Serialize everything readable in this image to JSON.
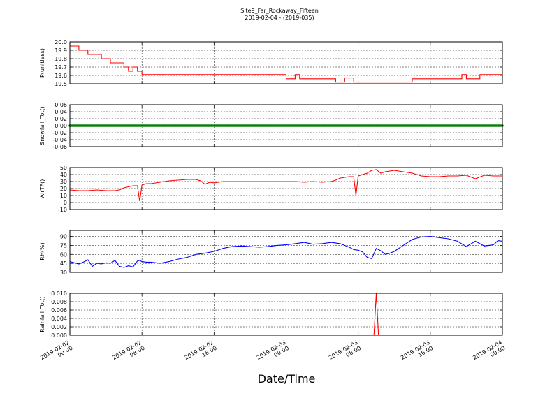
{
  "figure": {
    "title": "Site9_Far_Rockaway_Fifteen",
    "subtitle": "2019-02-04 - (2019-035)",
    "xlabel": "Date/Time"
  },
  "chart_data": [
    {
      "type": "line",
      "ylabel": "P(unitless)",
      "color": "#ff0000",
      "ylim": [
        19.5,
        20.0
      ],
      "yticks": [
        "20.0",
        "19.9",
        "19.8",
        "19.7",
        "19.6",
        "19.5"
      ],
      "grid": true,
      "x_hours": [
        0,
        2,
        2,
        4,
        4,
        7,
        7,
        9,
        9,
        12,
        12,
        13,
        13,
        14,
        14,
        15,
        15,
        16,
        16,
        48,
        48,
        50,
        50,
        51,
        51,
        59,
        59,
        61,
        61,
        63,
        63,
        76,
        76,
        87,
        87,
        88,
        88,
        88.5,
        88.5,
        91,
        91,
        96
      ],
      "values": [
        19.95,
        19.95,
        19.9,
        19.9,
        19.85,
        19.85,
        19.8,
        19.8,
        19.75,
        19.75,
        19.7,
        19.7,
        19.65,
        19.65,
        19.7,
        19.7,
        19.65,
        19.65,
        19.61,
        19.61,
        19.56,
        19.56,
        19.61,
        19.61,
        19.56,
        19.56,
        19.52,
        19.52,
        19.57,
        19.57,
        19.52,
        19.52,
        19.56,
        19.56,
        19.61,
        19.61,
        19.56,
        19.56,
        19.56,
        19.56,
        19.61,
        19.61
      ]
    },
    {
      "type": "scatter",
      "ylabel": "Snowfall_Tot()",
      "color": "#008000",
      "ylim": [
        -0.06,
        0.06
      ],
      "yticks": [
        "0.06",
        "0.04",
        "0.02",
        "0.00",
        "-0.02",
        "-0.04",
        "-0.06"
      ],
      "grid": true,
      "x_range_hours": [
        0,
        96
      ],
      "constant_value": 0.0
    },
    {
      "type": "line",
      "ylabel": "AirTF()",
      "color": "#ff0000",
      "ylim": [
        -10,
        50
      ],
      "yticks": [
        "50",
        "40",
        "30",
        "20",
        "10",
        "0",
        "-10"
      ],
      "grid": true,
      "x_hours": [
        0,
        2,
        4,
        6,
        8,
        10,
        11,
        12,
        14,
        15,
        15.5,
        16,
        17,
        18,
        20,
        22,
        24,
        26,
        28,
        29,
        30,
        31,
        32,
        34,
        36,
        38,
        40,
        42,
        44,
        46,
        48,
        50,
        52,
        54,
        56,
        58,
        59,
        60,
        62,
        63,
        63.5,
        64,
        66,
        67,
        68,
        69,
        70,
        72,
        74,
        76,
        78,
        80,
        82,
        84,
        86,
        88,
        90,
        92,
        94,
        96
      ],
      "values": [
        18,
        17,
        17,
        18,
        17,
        17,
        18,
        21,
        24,
        24,
        2,
        25,
        27,
        27,
        29,
        31,
        32,
        33,
        33,
        31,
        26,
        29,
        28,
        30,
        30,
        30,
        30,
        30,
        30,
        30,
        30,
        30,
        29,
        30,
        29,
        30,
        32,
        35,
        37,
        37,
        10,
        38,
        42,
        46,
        47,
        42,
        44,
        46,
        44,
        42,
        38,
        37,
        37,
        38,
        38,
        39,
        34,
        39,
        38,
        38
      ]
    },
    {
      "type": "line",
      "ylabel": "RH(%)",
      "color": "#0000ff",
      "ylim": [
        30,
        100
      ],
      "yticks": [
        "90",
        "75",
        "60",
        "45",
        "30"
      ],
      "grid": true,
      "x_hours": [
        0,
        1,
        2,
        3,
        4,
        5,
        6,
        7,
        8,
        9,
        10,
        11,
        12,
        13,
        14,
        15,
        15.5,
        16,
        17,
        18,
        20,
        22,
        24,
        26,
        28,
        30,
        32,
        34,
        36,
        38,
        40,
        42,
        44,
        46,
        48,
        50,
        52,
        54,
        56,
        58,
        60,
        62,
        63,
        64,
        65,
        66,
        67,
        68,
        69,
        70,
        71,
        72,
        74,
        76,
        78,
        80,
        82,
        84,
        86,
        88,
        90,
        92,
        94,
        95,
        96
      ],
      "values": [
        48,
        46,
        44,
        47,
        51,
        40,
        45,
        44,
        46,
        45,
        50,
        40,
        38,
        41,
        39,
        49,
        50,
        48,
        47,
        47,
        45,
        48,
        52,
        55,
        60,
        62,
        65,
        70,
        73,
        74,
        73,
        72,
        73,
        75,
        76,
        78,
        80,
        77,
        78,
        80,
        78,
        72,
        68,
        67,
        64,
        55,
        53,
        70,
        66,
        60,
        62,
        65,
        75,
        85,
        89,
        90,
        88,
        86,
        82,
        73,
        82,
        74,
        76,
        83,
        82
      ]
    },
    {
      "type": "line",
      "ylabel": "Rainfall_Tot()",
      "color": "#ff0000",
      "ylim": [
        0.0,
        0.01
      ],
      "yticks": [
        "0.010",
        "0.008",
        "0.006",
        "0.004",
        "0.002",
        "0.000"
      ],
      "grid": true,
      "x_hours": [
        0,
        67.5,
        68,
        68.5,
        96
      ],
      "values": [
        0,
        0,
        0.01,
        0,
        0
      ]
    }
  ],
  "x_axis": {
    "ticks": [
      {
        "hour": 0,
        "line1": "2019-02-02",
        "line2": "00:00"
      },
      {
        "hour": 16,
        "line1": "2019-02-02",
        "line2": "08:00"
      },
      {
        "hour": 32,
        "line1": "2019-02-02",
        "line2": "16:00"
      },
      {
        "hour": 48,
        "line1": "2019-02-03",
        "line2": "00:00"
      },
      {
        "hour": 64,
        "line1": "2019-02-03",
        "line2": "08:00"
      },
      {
        "hour": 80,
        "line1": "2019-02-03",
        "line2": "16:00"
      },
      {
        "hour": 96,
        "line1": "2019-02-04",
        "line2": "00:00"
      }
    ]
  }
}
